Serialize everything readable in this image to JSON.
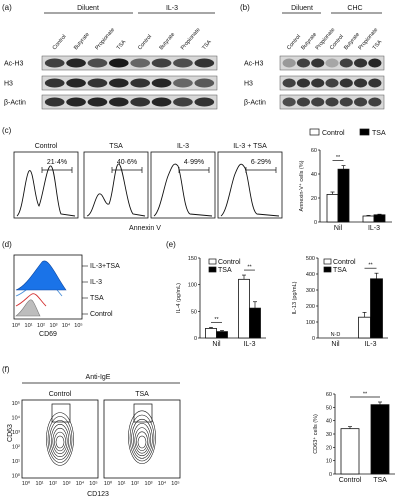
{
  "panel_a": {
    "letter": "(a)",
    "group_diluent": "Diluent",
    "group_il3": "IL-3",
    "lanes": [
      "Control",
      "Butyrate",
      "Propionate",
      "TSA",
      "Control",
      "Butyrate",
      "Propionate",
      "TSA"
    ],
    "rows": [
      "Ac-H3",
      "H3",
      "β-Actin"
    ]
  },
  "panel_b": {
    "letter": "(b)",
    "group_diluent": "Diluent",
    "group_chc": "CHC",
    "lanes": [
      "Control",
      "Butyrate",
      "Propionate",
      "Control",
      "Butyrate",
      "Propionate",
      "TSA"
    ],
    "rows": [
      "Ac-H3",
      "H3",
      "β-Actin"
    ]
  },
  "panel_c": {
    "letter": "(c)",
    "histograms": [
      {
        "title": "Control",
        "percent": "21·4%"
      },
      {
        "title": "TSA",
        "percent": "40·6%"
      },
      {
        "title": "IL-3",
        "percent": "4·99%"
      },
      {
        "title": "IL-3 + TSA",
        "percent": "6·29%"
      }
    ],
    "xlabel": "Annexin V"
  },
  "panel_d": {
    "letter": "(d)",
    "legend": [
      "IL-3+TSA",
      "IL-3",
      "TSA",
      "Control"
    ],
    "xlabel": "CD69",
    "ticks": [
      "10⁰",
      "10¹",
      "10²",
      "10³",
      "10⁴",
      "10⁵"
    ],
    "colors": {
      "il3_tsa": "#1a73e8",
      "il3": "#4a90d9",
      "tsa": "#d32f2f",
      "control": "#9e9e9e"
    }
  },
  "panel_e": {
    "letter": "(e)"
  },
  "panel_f": {
    "letter": "(f)",
    "title": "Anti-IgE",
    "plots": [
      "Control",
      "TSA"
    ],
    "ylabel": "CD63",
    "xlabel": "CD123",
    "ticks": [
      "10⁰",
      "10¹",
      "10²",
      "10³",
      "10⁴",
      "10⁵"
    ]
  },
  "chart_data": [
    {
      "type": "bar",
      "id": "c",
      "ylabel": "Annexin-V⁺ cells (%)",
      "categories": [
        "Nil",
        "IL-3"
      ],
      "series": [
        {
          "name": "Control",
          "values": [
            23,
            5
          ],
          "errors": [
            2,
            0.5
          ]
        },
        {
          "name": "TSA",
          "values": [
            44,
            6
          ],
          "errors": [
            3,
            0.5
          ]
        }
      ],
      "ylim": [
        0,
        60
      ],
      "yticks": [
        0,
        20,
        40,
        60
      ],
      "significance": [
        {
          "category": "Nil",
          "label": "**"
        }
      ]
    },
    {
      "type": "bar",
      "id": "e1",
      "ylabel": "IL-4 (pg/mL)",
      "categories": [
        "Nil",
        "IL-3"
      ],
      "series": [
        {
          "name": "Control",
          "values": [
            18,
            110
          ],
          "errors": [
            2,
            8
          ]
        },
        {
          "name": "TSA",
          "values": [
            12,
            56
          ],
          "errors": [
            2,
            12
          ]
        }
      ],
      "ylim": [
        0,
        150
      ],
      "yticks": [
        0,
        50,
        100,
        150
      ],
      "significance": [
        {
          "category": "Nil",
          "label": "**"
        },
        {
          "category": "IL-3",
          "label": "**"
        }
      ]
    },
    {
      "type": "bar",
      "id": "e2",
      "ylabel": "IL-13 (pg/mL)",
      "categories": [
        "Nil",
        "IL-3"
      ],
      "series": [
        {
          "name": "Control",
          "values": [
            0,
            130
          ],
          "errors": [
            0,
            30
          ]
        },
        {
          "name": "TSA",
          "values": [
            0,
            370
          ],
          "errors": [
            0,
            35
          ]
        }
      ],
      "ylim": [
        0,
        500
      ],
      "yticks": [
        0,
        100,
        200,
        300,
        400,
        500
      ],
      "annotations": [
        {
          "category": "Nil",
          "label": "N·D"
        }
      ],
      "significance": [
        {
          "category": "IL-3",
          "label": "**"
        }
      ]
    },
    {
      "type": "bar",
      "id": "f",
      "ylabel": "CD63⁺ cells (%)",
      "categories": [
        "Control",
        "TSA"
      ],
      "values": [
        34,
        52
      ],
      "errors": [
        1.5,
        2
      ],
      "ylim": [
        0,
        60
      ],
      "yticks": [
        0,
        10,
        20,
        30,
        40,
        50,
        60
      ],
      "significance": [
        {
          "label": "**"
        }
      ]
    }
  ]
}
